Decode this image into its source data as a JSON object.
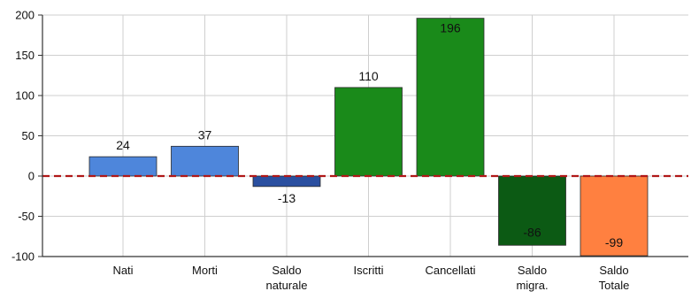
{
  "chart_data": {
    "type": "bar",
    "categories": [
      [
        "Nati"
      ],
      [
        "Morti"
      ],
      [
        "Saldo",
        "naturale"
      ],
      [
        "Iscritti"
      ],
      [
        "Cancellati"
      ],
      [
        "Saldo",
        "migra."
      ],
      [
        "Saldo",
        "Totale"
      ]
    ],
    "values": [
      24,
      37,
      -13,
      110,
      196,
      -86,
      -99
    ],
    "data_labels": [
      "24",
      "37",
      "-13",
      "110",
      "196",
      "-86",
      "-99"
    ],
    "bar_colors": [
      "#4e86db",
      "#4e86db",
      "#2a4fa0",
      "#1a8a1a",
      "#1a8a1a",
      "#0c5a14",
      "#ff8040"
    ],
    "ylim": [
      -100,
      200
    ],
    "yticks": [
      200,
      150,
      100,
      50,
      0,
      -50,
      -100
    ],
    "ytick_labels": [
      "200",
      "150",
      "100",
      "50",
      "0",
      "-50",
      "-100"
    ],
    "grid": true,
    "zero_line_color": "#b01818",
    "title": "",
    "xlabel": "",
    "ylabel": ""
  }
}
